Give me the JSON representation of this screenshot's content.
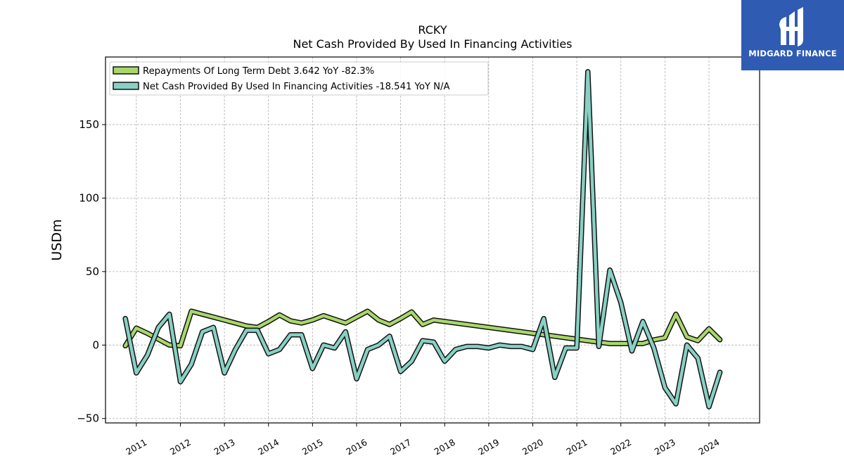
{
  "brand": {
    "name": "MIDGARD FINANCE"
  },
  "chart_data": {
    "type": "line",
    "title": "RCKY",
    "subtitle": "Net Cash Provided By Used In Financing Activities",
    "xlabel": "",
    "ylabel": "USDm",
    "xlim": [
      2010.3,
      2025.15
    ],
    "ylim": [
      -53,
      196
    ],
    "yticks": [
      -50,
      0,
      50,
      100,
      150
    ],
    "xticks": [
      2011,
      2012,
      2013,
      2014,
      2015,
      2016,
      2017,
      2018,
      2019,
      2020,
      2021,
      2022,
      2023,
      2024
    ],
    "grid": true,
    "legend_position": "top-left",
    "series": [
      {
        "name": "Repayments Of Long Term Debt",
        "legend_label": "Repayments Of Long Term Debt  3.642 YoY -82.3%",
        "color": "#a8d86a",
        "x": [
          2010.75,
          2011.0,
          2011.25,
          2011.5,
          2011.75,
          2012.0,
          2012.25,
          2012.5,
          2012.75,
          2013.0,
          2013.25,
          2013.5,
          2013.75,
          2014.0,
          2014.25,
          2014.5,
          2014.75,
          2015.0,
          2015.25,
          2015.5,
          2015.75,
          2016.0,
          2016.25,
          2016.5,
          2016.75,
          2017.0,
          2017.25,
          2017.5,
          2017.75,
          2020.25,
          2021.25,
          2021.75,
          2022.0,
          2022.25,
          2022.5,
          2022.75,
          2023.0,
          2023.25,
          2023.5,
          2023.75,
          2024.0,
          2024.25
        ],
        "values": [
          -0.5,
          11.5,
          8,
          4,
          0,
          -0.5,
          23,
          21,
          19,
          17,
          15,
          13,
          12,
          16,
          20.5,
          16.5,
          15,
          17,
          20,
          17.5,
          15,
          19,
          23,
          17,
          14,
          18,
          22.5,
          14,
          17,
          7,
          3,
          1,
          1,
          1,
          1,
          3.5,
          5,
          21,
          5.5,
          3,
          11,
          3.6
        ]
      },
      {
        "name": "Net Cash Provided By Used In Financing Activities",
        "legend_label": "Net Cash Provided By Used In Financing Activities  -18.541 YoY N/A",
        "color": "#88d0c4",
        "x": [
          2010.75,
          2011.0,
          2011.25,
          2011.5,
          2011.75,
          2012.0,
          2012.25,
          2012.5,
          2012.75,
          2013.0,
          2013.25,
          2013.5,
          2013.75,
          2014.0,
          2014.25,
          2014.5,
          2014.75,
          2015.0,
          2015.25,
          2015.5,
          2015.75,
          2016.0,
          2016.25,
          2016.5,
          2016.75,
          2017.0,
          2017.25,
          2017.5,
          2017.75,
          2018.0,
          2018.25,
          2018.5,
          2018.75,
          2019.0,
          2019.25,
          2019.5,
          2019.75,
          2020.0,
          2020.25,
          2020.5,
          2020.75,
          2021.0,
          2021.25,
          2021.5,
          2021.75,
          2022.0,
          2022.25,
          2022.5,
          2022.75,
          2023.0,
          2023.25,
          2023.5,
          2023.75,
          2024.0,
          2024.25
        ],
        "values": [
          18,
          -19,
          -7,
          12,
          21,
          -25,
          -13,
          9,
          12,
          -19,
          -3,
          10,
          10,
          -6,
          -3,
          7,
          7,
          -16,
          0,
          -2,
          9,
          -23,
          -3,
          0,
          6,
          -18,
          -11,
          3,
          2,
          -11,
          -3,
          -1,
          -1,
          -2,
          0,
          -1,
          -1,
          -3,
          18,
          -22,
          -2,
          -2,
          186,
          -1,
          51,
          29,
          -4,
          16,
          -2,
          -29,
          -40,
          0,
          -9,
          -42,
          -18.5
        ]
      }
    ]
  }
}
